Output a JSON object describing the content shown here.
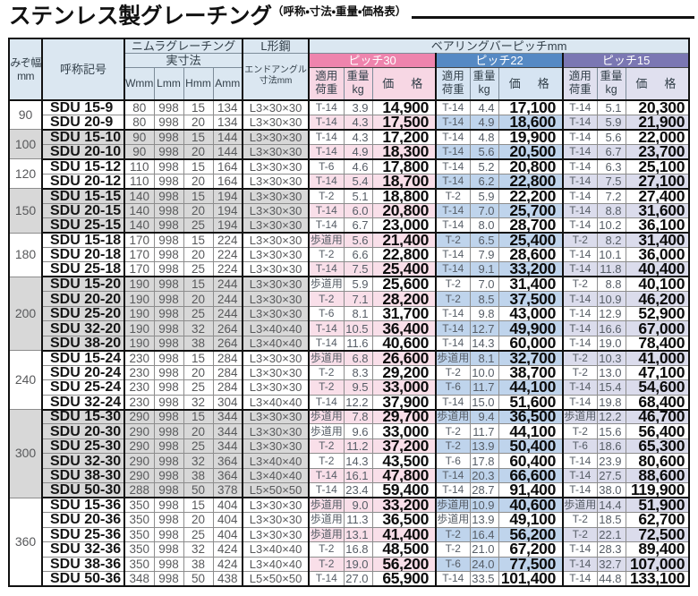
{
  "title": {
    "main": "ステンレス製グレーチング",
    "sub": "（呼称・寸法・重量・価格表）"
  },
  "headers": {
    "groove_width": "みぞ幅\nmm",
    "designation": "呼称記号",
    "grating_brand": "ニムラグレーチング",
    "actual_dimensions": "実寸法",
    "dim_w": "Wmm",
    "dim_l": "Lmm",
    "dim_h": "Hmm",
    "dim_a": "Amm",
    "l_steel": "L形鋼",
    "end_angle": "エンドアングル\n寸法mm",
    "bearing_bar_pitch": "ベアリングバーピッチmm",
    "pitch30": "ピッチ30",
    "pitch22": "ピッチ22",
    "pitch15": "ピッチ15",
    "applied_load": "適用\n荷重",
    "weight_kg": "重量\nkg",
    "price": "価　格"
  },
  "colors": {
    "pitch30_bar": "#ee84ad",
    "pitch22_bar": "#5589c4",
    "pitch15_bar": "#7b77b3",
    "pitch30_tint": "#f9dfe9",
    "pitch22_tint": "#bfd4ec",
    "pitch15_tint": "#dbdcec",
    "header_bg": "#dbe7f1",
    "group_gray": "#d8d8d8"
  },
  "groups": [
    {
      "groove": "90",
      "rows": [
        {
          "code": "SDU 15-9",
          "w": "80",
          "l": "998",
          "h": "15",
          "a": "134",
          "angle": "L3×30×30",
          "p30": {
            "load": "T-14",
            "wt": "3.9",
            "price": "14,900"
          },
          "p22": {
            "load": "T-14",
            "wt": "4.4",
            "price": "17,100"
          },
          "p15": {
            "load": "T-14",
            "wt": "5.1",
            "price": "20,300"
          }
        },
        {
          "code": "SDU 20-9",
          "w": "80",
          "l": "998",
          "h": "20",
          "a": "134",
          "angle": "L3×30×30",
          "p30": {
            "load": "T-14",
            "wt": "4.3",
            "price": "17,500"
          },
          "p22": {
            "load": "T-14",
            "wt": "4.9",
            "price": "18,600"
          },
          "p15": {
            "load": "T-14",
            "wt": "5.9",
            "price": "21,900"
          }
        }
      ]
    },
    {
      "groove": "100",
      "rows": [
        {
          "code": "SDU 15-10",
          "w": "90",
          "l": "998",
          "h": "15",
          "a": "144",
          "angle": "L3×30×30",
          "p30": {
            "load": "T-14",
            "wt": "4.3",
            "price": "17,200"
          },
          "p22": {
            "load": "T-14",
            "wt": "4.8",
            "price": "19,900"
          },
          "p15": {
            "load": "T-14",
            "wt": "5.6",
            "price": "22,000"
          }
        },
        {
          "code": "SDU 20-10",
          "w": "90",
          "l": "998",
          "h": "20",
          "a": "144",
          "angle": "L3×30×30",
          "p30": {
            "load": "T-14",
            "wt": "4.9",
            "price": "18,300"
          },
          "p22": {
            "load": "T-14",
            "wt": "5.6",
            "price": "20,500"
          },
          "p15": {
            "load": "T-14",
            "wt": "6.7",
            "price": "23,700"
          }
        }
      ]
    },
    {
      "groove": "120",
      "rows": [
        {
          "code": "SDU 15-12",
          "w": "110",
          "l": "998",
          "h": "15",
          "a": "164",
          "angle": "L3×30×30",
          "p30": {
            "load": "T-6",
            "wt": "4.6",
            "price": "17,800"
          },
          "p22": {
            "load": "T-14",
            "wt": "5.2",
            "price": "20,800"
          },
          "p15": {
            "load": "T-14",
            "wt": "6.3",
            "price": "25,100"
          }
        },
        {
          "code": "SDU 20-12",
          "w": "110",
          "l": "998",
          "h": "20",
          "a": "164",
          "angle": "L3×30×30",
          "p30": {
            "load": "T-14",
            "wt": "5.4",
            "price": "18,700"
          },
          "p22": {
            "load": "T-14",
            "wt": "6.2",
            "price": "22,800"
          },
          "p15": {
            "load": "T-14",
            "wt": "7.5",
            "price": "27,100"
          }
        }
      ]
    },
    {
      "groove": "150",
      "rows": [
        {
          "code": "SDU 15-15",
          "w": "140",
          "l": "998",
          "h": "15",
          "a": "194",
          "angle": "L3×30×30",
          "p30": {
            "load": "T-2",
            "wt": "5.1",
            "price": "18,800"
          },
          "p22": {
            "load": "T-2",
            "wt": "5.9",
            "price": "22,200"
          },
          "p15": {
            "load": "T-14",
            "wt": "7.2",
            "price": "27,400"
          }
        },
        {
          "code": "SDU 20-15",
          "w": "140",
          "l": "998",
          "h": "20",
          "a": "194",
          "angle": "L3×30×30",
          "p30": {
            "load": "T-14",
            "wt": "6.0",
            "price": "20,800"
          },
          "p22": {
            "load": "T-14",
            "wt": "7.0",
            "price": "25,700"
          },
          "p15": {
            "load": "T-14",
            "wt": "8.8",
            "price": "31,600"
          }
        },
        {
          "code": "SDU 25-15",
          "w": "140",
          "l": "998",
          "h": "25",
          "a": "194",
          "angle": "L3×30×30",
          "p30": {
            "load": "T-14",
            "wt": "6.7",
            "price": "23,000"
          },
          "p22": {
            "load": "T-14",
            "wt": "8.0",
            "price": "28,700"
          },
          "p15": {
            "load": "T-14",
            "wt": "10.2",
            "price": "36,100"
          }
        }
      ]
    },
    {
      "groove": "180",
      "rows": [
        {
          "code": "SDU 15-18",
          "w": "170",
          "l": "998",
          "h": "15",
          "a": "224",
          "angle": "L3×30×30",
          "p30": {
            "load": "歩道用",
            "wt": "5.6",
            "price": "21,400"
          },
          "p22": {
            "load": "T-2",
            "wt": "6.5",
            "price": "25,400"
          },
          "p15": {
            "load": "T-2",
            "wt": "8.2",
            "price": "31,400"
          }
        },
        {
          "code": "SDU 20-18",
          "w": "170",
          "l": "998",
          "h": "20",
          "a": "224",
          "angle": "L3×30×30",
          "p30": {
            "load": "T-2",
            "wt": "6.6",
            "price": "22,800"
          },
          "p22": {
            "load": "T-14",
            "wt": "7.9",
            "price": "28,600"
          },
          "p15": {
            "load": "T-14",
            "wt": "10.1",
            "price": "36,000"
          }
        },
        {
          "code": "SDU 25-18",
          "w": "170",
          "l": "998",
          "h": "25",
          "a": "224",
          "angle": "L3×30×30",
          "p30": {
            "load": "T-14",
            "wt": "7.5",
            "price": "25,400"
          },
          "p22": {
            "load": "T-14",
            "wt": "9.1",
            "price": "33,200"
          },
          "p15": {
            "load": "T-14",
            "wt": "11.8",
            "price": "40,400"
          }
        }
      ]
    },
    {
      "groove": "200",
      "rows": [
        {
          "code": "SDU 15-20",
          "w": "190",
          "l": "998",
          "h": "15",
          "a": "244",
          "angle": "L3×30×30",
          "p30": {
            "load": "歩道用",
            "wt": "5.9",
            "price": "25,600"
          },
          "p22": {
            "load": "T-2",
            "wt": "7.0",
            "price": "31,400"
          },
          "p15": {
            "load": "T-2",
            "wt": "8.8",
            "price": "40,100"
          }
        },
        {
          "code": "SDU 20-20",
          "w": "190",
          "l": "998",
          "h": "20",
          "a": "244",
          "angle": "L3×30×30",
          "p30": {
            "load": "T-2",
            "wt": "7.1",
            "price": "28,200"
          },
          "p22": {
            "load": "T-2",
            "wt": "8.5",
            "price": "37,500"
          },
          "p15": {
            "load": "T-14",
            "wt": "10.9",
            "price": "46,200"
          }
        },
        {
          "code": "SDU 25-20",
          "w": "190",
          "l": "998",
          "h": "25",
          "a": "244",
          "angle": "L3×30×30",
          "p30": {
            "load": "T-6",
            "wt": "8.1",
            "price": "31,700"
          },
          "p22": {
            "load": "T-14",
            "wt": "9.8",
            "price": "43,000"
          },
          "p15": {
            "load": "T-14",
            "wt": "12.9",
            "price": "52,900"
          }
        },
        {
          "code": "SDU 32-20",
          "w": "190",
          "l": "998",
          "h": "32",
          "a": "264",
          "angle": "L3×40×40",
          "p30": {
            "load": "T-14",
            "wt": "10.5",
            "price": "36,400"
          },
          "p22": {
            "load": "T-14",
            "wt": "12.7",
            "price": "49,900"
          },
          "p15": {
            "load": "T-14",
            "wt": "16.6",
            "price": "67,000"
          }
        },
        {
          "code": "SDU 38-20",
          "w": "190",
          "l": "998",
          "h": "38",
          "a": "264",
          "angle": "L3×40×40",
          "p30": {
            "load": "T-14",
            "wt": "11.6",
            "price": "40,600"
          },
          "p22": {
            "load": "T-14",
            "wt": "14.3",
            "price": "60,000"
          },
          "p15": {
            "load": "T-14",
            "wt": "19.0",
            "price": "78,400"
          }
        }
      ]
    },
    {
      "groove": "240",
      "rows": [
        {
          "code": "SDU 15-24",
          "w": "230",
          "l": "998",
          "h": "15",
          "a": "284",
          "angle": "L3×30×30",
          "p30": {
            "load": "歩道用",
            "wt": "6.8",
            "price": "26,600"
          },
          "p22": {
            "load": "歩道用",
            "wt": "8.1",
            "price": "32,700"
          },
          "p15": {
            "load": "T-2",
            "wt": "10.3",
            "price": "41,000"
          }
        },
        {
          "code": "SDU 20-24",
          "w": "230",
          "l": "998",
          "h": "20",
          "a": "284",
          "angle": "L3×30×30",
          "p30": {
            "load": "T-2",
            "wt": "8.3",
            "price": "29,200"
          },
          "p22": {
            "load": "T-2",
            "wt": "10.0",
            "price": "38,700"
          },
          "p15": {
            "load": "T-2",
            "wt": "13.0",
            "price": "47,100"
          }
        },
        {
          "code": "SDU 25-24",
          "w": "230",
          "l": "998",
          "h": "25",
          "a": "284",
          "angle": "L3×30×30",
          "p30": {
            "load": "T-2",
            "wt": "9.5",
            "price": "33,000"
          },
          "p22": {
            "load": "T-6",
            "wt": "11.7",
            "price": "44,100"
          },
          "p15": {
            "load": "T-14",
            "wt": "15.4",
            "price": "54,600"
          }
        },
        {
          "code": "SDU 32-24",
          "w": "230",
          "l": "998",
          "h": "32",
          "a": "304",
          "angle": "L3×40×40",
          "p30": {
            "load": "T-14",
            "wt": "12.2",
            "price": "37,900"
          },
          "p22": {
            "load": "T-14",
            "wt": "15.0",
            "price": "51,600"
          },
          "p15": {
            "load": "T-14",
            "wt": "19.8",
            "price": "68,400"
          }
        }
      ]
    },
    {
      "groove": "300",
      "rows": [
        {
          "code": "SDU 15-30",
          "w": "290",
          "l": "998",
          "h": "15",
          "a": "344",
          "angle": "L3×30×30",
          "p30": {
            "load": "歩道用",
            "wt": "7.8",
            "price": "29,700"
          },
          "p22": {
            "load": "歩道用",
            "wt": "9.4",
            "price": "36,500"
          },
          "p15": {
            "load": "歩道用",
            "wt": "12.2",
            "price": "46,700"
          }
        },
        {
          "code": "SDU 20-30",
          "w": "290",
          "l": "998",
          "h": "20",
          "a": "344",
          "angle": "L3×30×30",
          "p30": {
            "load": "歩道用",
            "wt": "9.6",
            "price": "33,000"
          },
          "p22": {
            "load": "T-2",
            "wt": "11.7",
            "price": "44,100"
          },
          "p15": {
            "load": "T-2",
            "wt": "15.6",
            "price": "56,400"
          }
        },
        {
          "code": "SDU 25-30",
          "w": "290",
          "l": "998",
          "h": "25",
          "a": "344",
          "angle": "L3×30×30",
          "p30": {
            "load": "T-2",
            "wt": "11.2",
            "price": "37,200"
          },
          "p22": {
            "load": "T-2",
            "wt": "13.9",
            "price": "50,400"
          },
          "p15": {
            "load": "T-6",
            "wt": "18.6",
            "price": "65,300"
          }
        },
        {
          "code": "SDU 32-30",
          "w": "290",
          "l": "998",
          "h": "32",
          "a": "364",
          "angle": "L3×40×40",
          "p30": {
            "load": "T-2",
            "wt": "14.3",
            "price": "43,500"
          },
          "p22": {
            "load": "T-6",
            "wt": "17.8",
            "price": "60,400"
          },
          "p15": {
            "load": "T-14",
            "wt": "23.9",
            "price": "80,600"
          }
        },
        {
          "code": "SDU 38-30",
          "w": "290",
          "l": "998",
          "h": "38",
          "a": "364",
          "angle": "L3×40×40",
          "p30": {
            "load": "T-14",
            "wt": "16.1",
            "price": "47,800"
          },
          "p22": {
            "load": "T-14",
            "wt": "20.3",
            "price": "66,600"
          },
          "p15": {
            "load": "T-14",
            "wt": "27.5",
            "price": "88,600"
          }
        },
        {
          "code": "SDU 50-30",
          "w": "288",
          "l": "998",
          "h": "50",
          "a": "378",
          "angle": "L5×50×50",
          "p30": {
            "load": "T-14",
            "wt": "23.4",
            "price": "59,400"
          },
          "p22": {
            "load": "T-14",
            "wt": "28.7",
            "price": "91,400"
          },
          "p15": {
            "load": "T-14",
            "wt": "38.0",
            "price": "119,900"
          }
        }
      ]
    },
    {
      "groove": "360",
      "rows": [
        {
          "code": "SDU 15-36",
          "w": "350",
          "l": "998",
          "h": "15",
          "a": "404",
          "angle": "L3×30×30",
          "p30": {
            "load": "歩道用",
            "wt": "9.0",
            "price": "33,200"
          },
          "p22": {
            "load": "歩道用",
            "wt": "10.9",
            "price": "40,600"
          },
          "p15": {
            "load": "歩道用",
            "wt": "14.4",
            "price": "51,900"
          }
        },
        {
          "code": "SDU 20-36",
          "w": "350",
          "l": "998",
          "h": "20",
          "a": "404",
          "angle": "L3×30×30",
          "p30": {
            "load": "歩道用",
            "wt": "11.3",
            "price": "36,500"
          },
          "p22": {
            "load": "歩道用",
            "wt": "13.9",
            "price": "49,100"
          },
          "p15": {
            "load": "T-2",
            "wt": "18.5",
            "price": "62,700"
          }
        },
        {
          "code": "SDU 25-36",
          "w": "350",
          "l": "998",
          "h": "25",
          "a": "404",
          "angle": "L3×30×30",
          "p30": {
            "load": "歩道用",
            "wt": "13.1",
            "price": "41,400"
          },
          "p22": {
            "load": "T-2",
            "wt": "16.4",
            "price": "56,200"
          },
          "p15": {
            "load": "T-2",
            "wt": "22.1",
            "price": "72,500"
          }
        },
        {
          "code": "SDU 32-36",
          "w": "350",
          "l": "998",
          "h": "32",
          "a": "424",
          "angle": "L3×40×40",
          "p30": {
            "load": "T-2",
            "wt": "16.8",
            "price": "48,500"
          },
          "p22": {
            "load": "T-2",
            "wt": "21.0",
            "price": "67,200"
          },
          "p15": {
            "load": "T-14",
            "wt": "28.3",
            "price": "89,400"
          }
        },
        {
          "code": "SDU 38-36",
          "w": "350",
          "l": "998",
          "h": "38",
          "a": "424",
          "angle": "L3×40×40",
          "p30": {
            "load": "T-2",
            "wt": "19.0",
            "price": "56,200"
          },
          "p22": {
            "load": "T-6",
            "wt": "24.0",
            "price": "77,500"
          },
          "p15": {
            "load": "T-14",
            "wt": "32.7",
            "price": "107,000"
          }
        },
        {
          "code": "SDU 50-36",
          "w": "348",
          "l": "998",
          "h": "50",
          "a": "438",
          "angle": "L5×50×50",
          "p30": {
            "load": "T-14",
            "wt": "27.0",
            "price": "65,900"
          },
          "p22": {
            "load": "T-14",
            "wt": "33.5",
            "price": "101,400"
          },
          "p15": {
            "load": "T-14",
            "wt": "44.8",
            "price": "133,100"
          }
        }
      ]
    }
  ]
}
